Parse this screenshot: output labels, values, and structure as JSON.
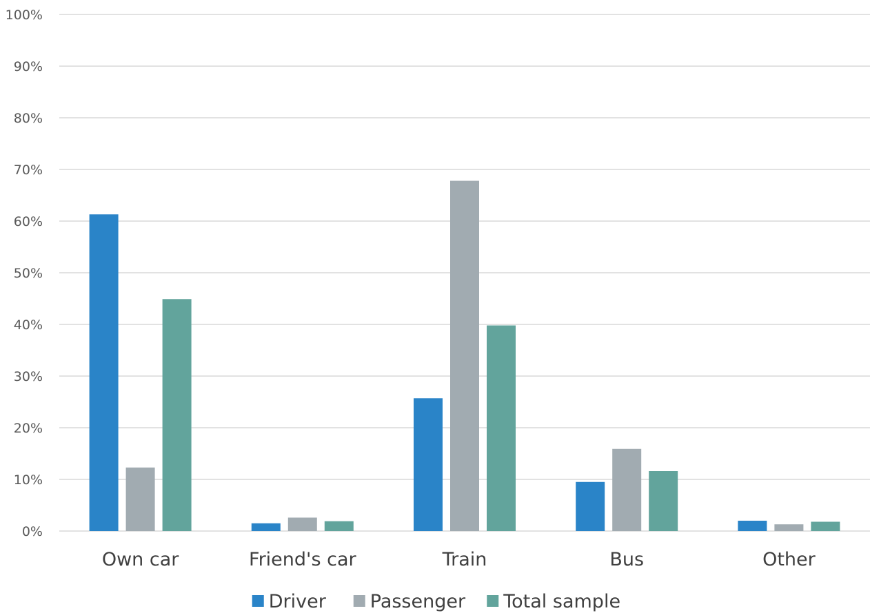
{
  "chart_data": {
    "type": "bar",
    "title": "",
    "xlabel": "",
    "ylabel": "",
    "categories": [
      "Own car",
      "Friend's car",
      "Train",
      "Bus",
      "Other"
    ],
    "series": [
      {
        "name": "Driver",
        "color": "#2a84c8",
        "values": [
          61.3,
          1.5,
          25.7,
          9.5,
          2.0
        ]
      },
      {
        "name": "Passenger",
        "color": "#a1abb1",
        "values": [
          12.3,
          2.6,
          67.8,
          15.9,
          1.3
        ]
      },
      {
        "name": "Total sample",
        "color": "#62a49c",
        "values": [
          44.9,
          1.9,
          39.8,
          11.6,
          1.8
        ]
      }
    ],
    "ylim": [
      0,
      100
    ],
    "yticks": [
      "0%",
      "10%",
      "20%",
      "30%",
      "40%",
      "50%",
      "60%",
      "70%",
      "80%",
      "90%",
      "100%"
    ],
    "grid": true,
    "legend_position": "bottom"
  }
}
